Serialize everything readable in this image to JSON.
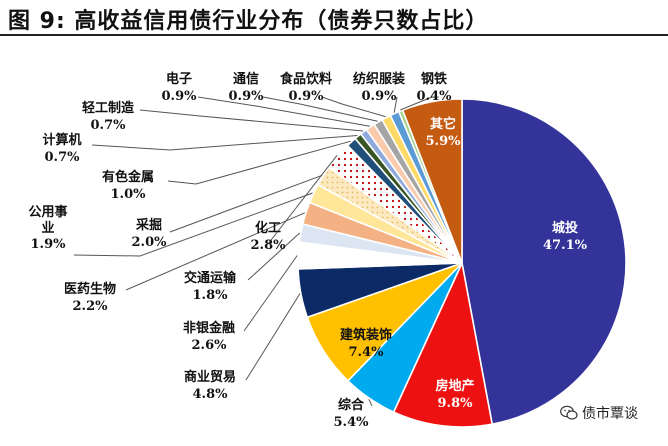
{
  "title": "图 9:  高收益信用债行业分布（债券只数占比）",
  "watermark": "债市覃谈",
  "chart_data": {
    "type": "pie",
    "title": "图 9:  高收益信用债行业分布（债券只数占比）",
    "unit": "%",
    "slices": [
      {
        "label": "城投",
        "value": 47.1,
        "color": "#333399",
        "pattern": "solid"
      },
      {
        "label": "房地产",
        "value": 9.8,
        "color": "#ee1111",
        "pattern": "solid"
      },
      {
        "label": "综合",
        "value": 5.4,
        "color": "#00aaee",
        "pattern": "solid"
      },
      {
        "label": "建筑装饰",
        "value": 7.4,
        "color": "#ffc000",
        "pattern": "solid"
      },
      {
        "label": "商业贸易",
        "value": 4.8,
        "color": "#0b2a66",
        "pattern": "solid"
      },
      {
        "label": "非银金融",
        "value": 2.6,
        "color": "#ffffff",
        "pattern": "solid"
      },
      {
        "label": "交通运输",
        "value": 1.8,
        "color": "#dce6f2",
        "pattern": "solid"
      },
      {
        "label": "医药生物",
        "value": 2.2,
        "color": "#f4b183",
        "pattern": "solid"
      },
      {
        "label": "公用事业",
        "value": 1.9,
        "color": "#ffe699",
        "pattern": "solid"
      },
      {
        "label": "采掘",
        "value": 2.0,
        "color": "#fde9c0",
        "pattern": "dots"
      },
      {
        "label": "化工",
        "value": 2.8,
        "color": "#c00000",
        "pattern": "dots"
      },
      {
        "label": "有色金属",
        "value": 1.0,
        "color": "#1f4e79",
        "pattern": "solid"
      },
      {
        "label": "计算机",
        "value": 0.7,
        "color": "#375623",
        "pattern": "solid"
      },
      {
        "label": "轻工制造",
        "value": 0.7,
        "color": "#8faadc",
        "pattern": "solid"
      },
      {
        "label": "电子",
        "value": 0.9,
        "color": "#f8cbad",
        "pattern": "solid"
      },
      {
        "label": "通信",
        "value": 0.9,
        "color": "#a5a5a5",
        "pattern": "solid"
      },
      {
        "label": "食品饮料",
        "value": 0.9,
        "color": "#ffd966",
        "pattern": "solid"
      },
      {
        "label": "纺织服装",
        "value": 0.9,
        "color": "#5b9bd5",
        "pattern": "solid"
      },
      {
        "label": "钢铁",
        "value": 0.4,
        "color": "#a9d18e",
        "pattern": "solid"
      },
      {
        "label": "其它",
        "value": 5.9,
        "color": "#c55a11",
        "pattern": "solid"
      }
    ],
    "display_labels": [
      {
        "name": "城投",
        "pct": "47.1%"
      },
      {
        "name": "房地产",
        "pct": "9.8%"
      },
      {
        "name": "综合",
        "pct": "5.4%"
      },
      {
        "name": "建筑装饰",
        "pct": "7.4%"
      },
      {
        "name": "商业贸易",
        "pct": "4.8%"
      },
      {
        "name": "非银金融",
        "pct": "2.6%"
      },
      {
        "name": "交通运输",
        "pct": "1.8%"
      },
      {
        "name": "医药生物",
        "pct": "2.2%"
      },
      {
        "name": "公用事",
        "name2": "业",
        "pct": "1.9%"
      },
      {
        "name": "采掘",
        "pct": "2.0%"
      },
      {
        "name": "化工",
        "pct": "2.8%"
      },
      {
        "name": "有色金属",
        "pct": "1.0%"
      },
      {
        "name": "计算机",
        "pct": "0.7%"
      },
      {
        "name": "轻工制造",
        "pct": "0.7%"
      },
      {
        "name": "电子",
        "pct": "0.9%"
      },
      {
        "name": "通信",
        "pct": "0.9%"
      },
      {
        "name": "食品饮料",
        "pct": "0.9%"
      },
      {
        "name": "纺织服装",
        "pct": "0.9%"
      },
      {
        "name": "钢铁",
        "pct": "0.4%"
      },
      {
        "name": "其它",
        "pct": "5.9%"
      }
    ]
  }
}
